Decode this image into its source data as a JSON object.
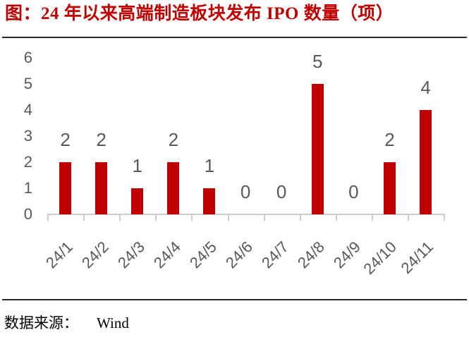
{
  "title": "图：24 年以来高端制造板块发布 IPO 数量（项）",
  "source": {
    "label": "数据来源：",
    "value": "Wind"
  },
  "colors": {
    "title_red": "#c00000",
    "bar_red": "#c00000",
    "axis_text": "#595959",
    "axis_line": "#cccccc",
    "divider": "#2b2b2b",
    "background": "#ffffff"
  },
  "chart_data": {
    "type": "bar",
    "title": "24 年以来高端制造板块发布 IPO 数量（项）",
    "categories": [
      "24/1",
      "24/2",
      "24/3",
      "24/4",
      "24/5",
      "24/6",
      "24/7",
      "24/8",
      "24/9",
      "24/10",
      "24/11"
    ],
    "values": [
      2,
      2,
      1,
      2,
      1,
      0,
      0,
      5,
      0,
      2,
      4
    ],
    "xlabel": "",
    "ylabel": "",
    "ylim": [
      0,
      6
    ],
    "yticks": [
      0,
      1,
      2,
      3,
      4,
      5,
      6
    ],
    "grid": false,
    "legend": null,
    "data_labels": true,
    "x_label_rotation_deg": 45
  }
}
